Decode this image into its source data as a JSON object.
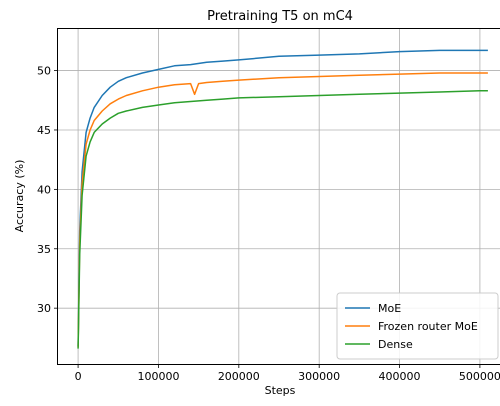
{
  "chart_data": {
    "type": "line",
    "title": "Pretraining T5 on mC4",
    "xlabel": "Steps",
    "ylabel": "Accuracy (%)",
    "xlim": [
      -25000,
      525000
    ],
    "ylim": [
      25.3,
      53.5
    ],
    "xticks": [
      0,
      100000,
      200000,
      300000,
      400000,
      500000
    ],
    "xtick_labels": [
      "0",
      "100000",
      "200000",
      "300000",
      "400000",
      "500000"
    ],
    "yticks": [
      30,
      35,
      40,
      45,
      50
    ],
    "ytick_labels": [
      "30",
      "35",
      "40",
      "45",
      "50"
    ],
    "grid": true,
    "legend_position": "lower right",
    "series": [
      {
        "name": "MoE",
        "color": "#1f77b4",
        "x": [
          0,
          2000,
          5000,
          10000,
          15000,
          20000,
          30000,
          40000,
          50000,
          60000,
          80000,
          100000,
          120000,
          140000,
          160000,
          180000,
          200000,
          250000,
          300000,
          350000,
          400000,
          450000,
          500000,
          510000
        ],
        "y": [
          26.8,
          36.5,
          41.5,
          44.8,
          46.0,
          46.9,
          47.9,
          48.6,
          49.1,
          49.4,
          49.8,
          50.1,
          50.4,
          50.5,
          50.7,
          50.8,
          50.9,
          51.2,
          51.3,
          51.4,
          51.6,
          51.7,
          51.7,
          51.7
        ]
      },
      {
        "name": "Frozen router MoE",
        "color": "#ff7f0e",
        "x": [
          0,
          2000,
          5000,
          10000,
          15000,
          20000,
          30000,
          40000,
          50000,
          60000,
          80000,
          100000,
          120000,
          140000,
          145000,
          150000,
          160000,
          180000,
          200000,
          250000,
          300000,
          350000,
          400000,
          450000,
          500000,
          510000
        ],
        "y": [
          26.7,
          35.5,
          40.5,
          43.8,
          45.0,
          45.8,
          46.6,
          47.2,
          47.6,
          47.9,
          48.3,
          48.6,
          48.8,
          48.9,
          48.0,
          48.9,
          49.0,
          49.1,
          49.2,
          49.4,
          49.5,
          49.6,
          49.7,
          49.8,
          49.8,
          49.8
        ]
      },
      {
        "name": "Dense",
        "color": "#2ca02c",
        "x": [
          0,
          2000,
          5000,
          10000,
          15000,
          20000,
          30000,
          40000,
          50000,
          60000,
          80000,
          100000,
          120000,
          140000,
          160000,
          180000,
          200000,
          250000,
          300000,
          350000,
          400000,
          450000,
          500000,
          510000
        ],
        "y": [
          26.6,
          34.5,
          39.5,
          42.8,
          44.0,
          44.8,
          45.5,
          46.0,
          46.4,
          46.6,
          46.9,
          47.1,
          47.3,
          47.4,
          47.5,
          47.6,
          47.7,
          47.8,
          47.9,
          48.0,
          48.1,
          48.2,
          48.3,
          48.3
        ]
      }
    ]
  }
}
